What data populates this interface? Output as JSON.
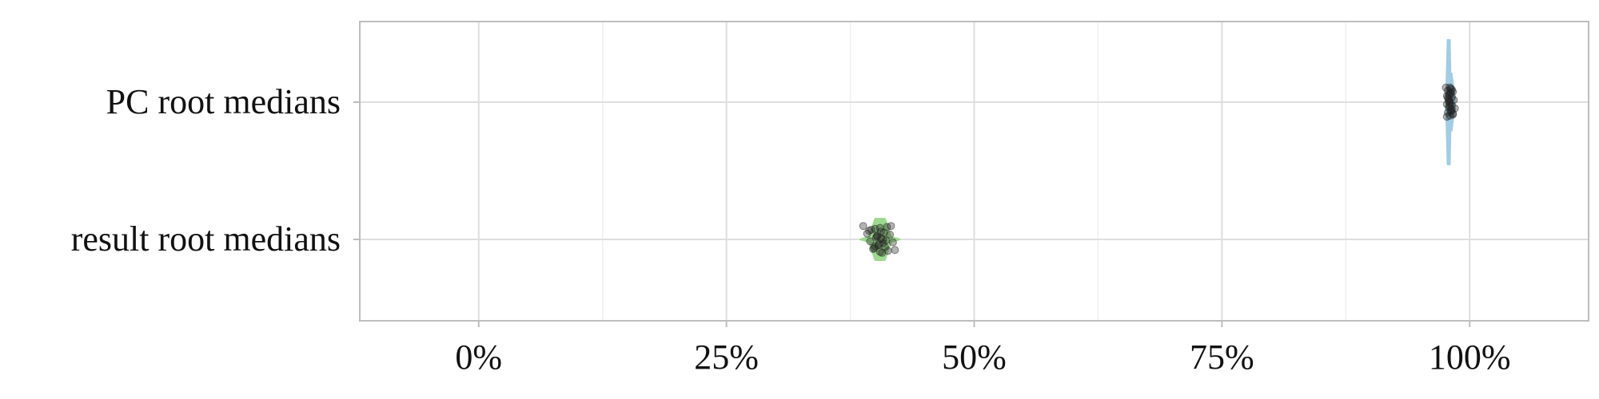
{
  "chart_data": {
    "type": "violin",
    "categories": [
      "PC root medians",
      "result root medians"
    ],
    "x_ticks": [
      {
        "value": 0,
        "label": "0%"
      },
      {
        "value": 25,
        "label": "25%"
      },
      {
        "value": 50,
        "label": "50%"
      },
      {
        "value": 75,
        "label": "75%"
      },
      {
        "value": 100,
        "label": "100%"
      }
    ],
    "xlim": [
      -12,
      112
    ],
    "grid": true,
    "series": [
      {
        "category": "PC root medians",
        "color": "#9ecae1",
        "median": 98,
        "min": 97.6,
        "max": 98.5,
        "jitter_points": [
          97.6,
          97.7,
          97.7,
          97.8,
          97.8,
          97.9,
          97.9,
          98.0,
          98.0,
          98.0,
          98.1,
          98.1,
          98.2,
          98.2,
          98.3,
          98.3,
          98.4,
          98.5,
          97.7,
          97.9,
          98.0,
          98.1,
          98.2,
          97.8,
          98.0,
          98.3,
          98.1,
          97.9,
          98.2,
          98.0
        ]
      },
      {
        "category": "result root medians",
        "color": "#98d88a",
        "median": 40.5,
        "min": 38.5,
        "max": 42.5,
        "jitter_points": [
          38.8,
          39.2,
          39.5,
          39.8,
          40.0,
          40.2,
          40.4,
          40.5,
          40.6,
          40.8,
          41.0,
          41.2,
          41.5,
          41.8,
          42.0,
          39.6,
          40.1,
          40.3,
          40.7,
          40.9,
          41.1,
          39.9,
          40.5,
          40.2,
          40.8,
          41.3,
          39.4,
          40.6,
          40.0,
          41.6
        ]
      }
    ]
  },
  "colors": {
    "panel_border": "#bdbdbd",
    "grid_major": "#dedede",
    "grid_minor": "#eeeeee",
    "points": "#222222"
  }
}
